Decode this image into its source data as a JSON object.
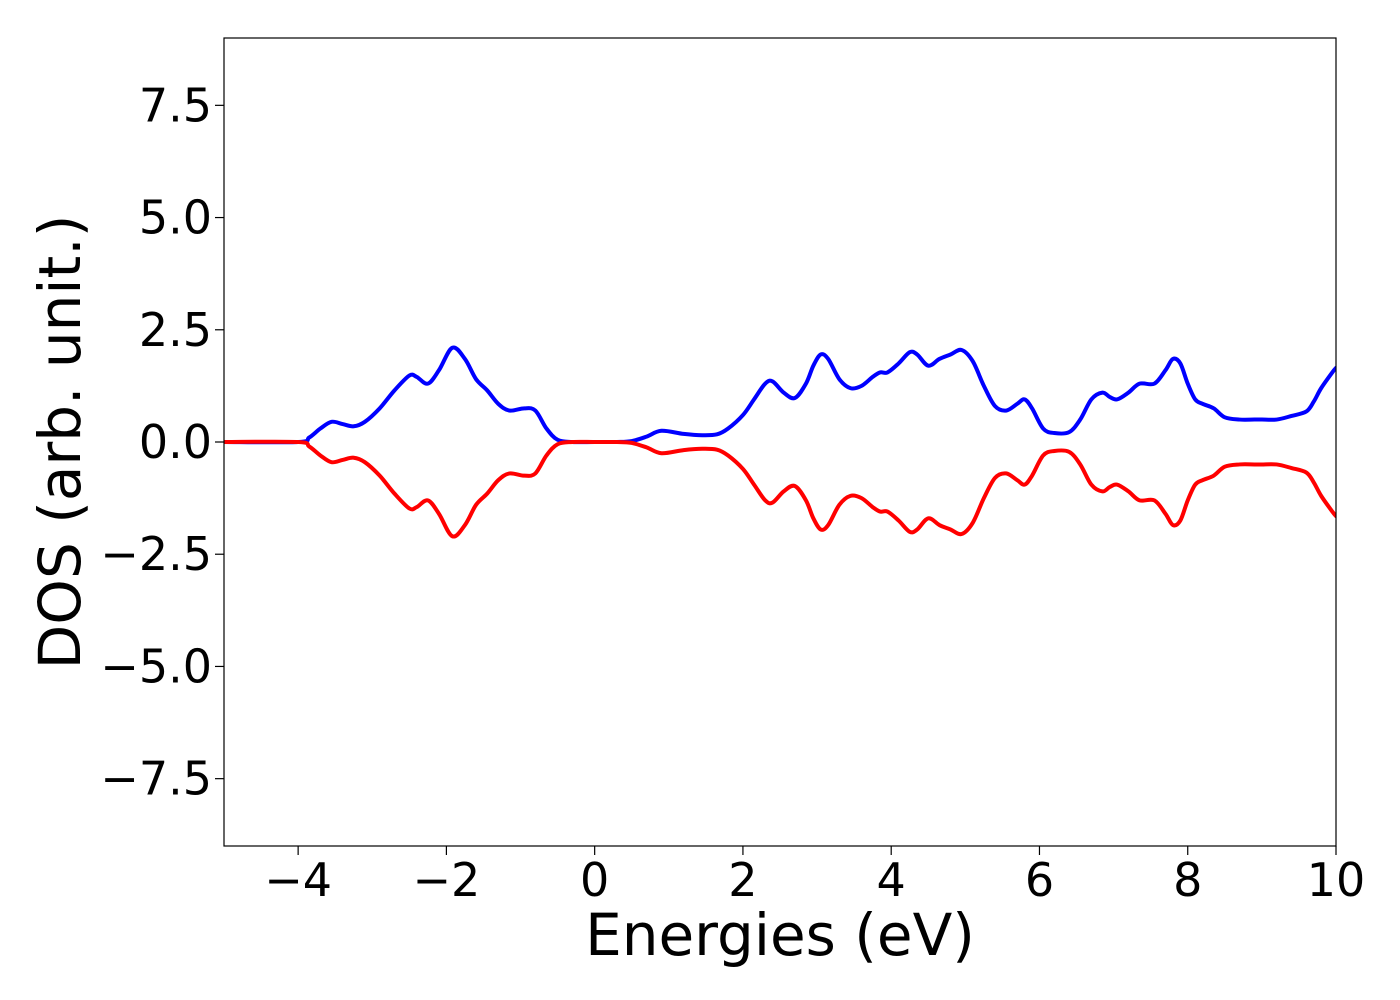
{
  "chart_data": {
    "type": "line",
    "title": "",
    "xlabel": "Energies (eV)",
    "ylabel": "DOS (arb. unit.)",
    "xlim": [
      -5,
      10
    ],
    "ylim": [
      -9,
      9
    ],
    "xticks": [
      -4,
      -2,
      0,
      2,
      4,
      6,
      8,
      10
    ],
    "xtick_labels": [
      "−4",
      "−2",
      "0",
      "2",
      "4",
      "6",
      "8",
      "10"
    ],
    "yticks": [
      -7.5,
      -5.0,
      -2.5,
      0.0,
      2.5,
      5.0,
      7.5
    ],
    "ytick_labels": [
      "−7.5",
      "−5.0",
      "−2.5",
      "0.0",
      "2.5",
      "5.0",
      "7.5"
    ],
    "grid": false,
    "legend": false,
    "x": [
      -5.0,
      -4.0,
      -3.85,
      -3.7,
      -3.55,
      -3.4,
      -3.25,
      -3.1,
      -2.9,
      -2.7,
      -2.5,
      -2.4,
      -2.25,
      -2.1,
      -1.92,
      -1.75,
      -1.6,
      -1.45,
      -1.3,
      -1.15,
      -0.95,
      -0.8,
      -0.65,
      -0.5,
      -0.3,
      0.0,
      0.3,
      0.5,
      0.7,
      0.9,
      1.2,
      1.45,
      1.65,
      1.8,
      2.0,
      2.15,
      2.3,
      2.4,
      2.55,
      2.7,
      2.85,
      2.95,
      3.05,
      3.15,
      3.3,
      3.45,
      3.6,
      3.75,
      3.85,
      3.95,
      4.1,
      4.25,
      4.35,
      4.5,
      4.65,
      4.8,
      4.95,
      5.1,
      5.25,
      5.4,
      5.55,
      5.7,
      5.8,
      5.9,
      6.05,
      6.2,
      6.4,
      6.55,
      6.7,
      6.85,
      6.95,
      7.05,
      7.2,
      7.35,
      7.55,
      7.7,
      7.8,
      7.9,
      8.0,
      8.1,
      8.2,
      8.35,
      8.5,
      8.7,
      8.9,
      9.0,
      9.2,
      9.4,
      9.6,
      9.7,
      9.8,
      9.95,
      10.0
    ],
    "series": [
      {
        "color": "#0000ff",
        "values": [
          0.0,
          0.0,
          0.1,
          0.3,
          0.45,
          0.4,
          0.35,
          0.45,
          0.75,
          1.15,
          1.48,
          1.45,
          1.3,
          1.6,
          2.1,
          1.85,
          1.4,
          1.15,
          0.85,
          0.7,
          0.75,
          0.7,
          0.3,
          0.05,
          0.0,
          0.0,
          0.0,
          0.02,
          0.12,
          0.25,
          0.18,
          0.15,
          0.17,
          0.3,
          0.6,
          0.95,
          1.3,
          1.35,
          1.1,
          0.98,
          1.3,
          1.7,
          1.95,
          1.85,
          1.4,
          1.2,
          1.25,
          1.45,
          1.55,
          1.55,
          1.75,
          2.0,
          1.95,
          1.7,
          1.85,
          1.95,
          2.05,
          1.8,
          1.25,
          0.8,
          0.7,
          0.85,
          0.95,
          0.75,
          0.3,
          0.2,
          0.22,
          0.5,
          0.95,
          1.1,
          1.0,
          0.95,
          1.1,
          1.3,
          1.3,
          1.6,
          1.85,
          1.75,
          1.3,
          0.95,
          0.85,
          0.75,
          0.55,
          0.5,
          0.5,
          0.5,
          0.5,
          0.58,
          0.68,
          0.9,
          1.2,
          1.55,
          1.65
        ]
      },
      {
        "color": "#ff0000",
        "values": [
          0.0,
          0.0,
          -0.1,
          -0.3,
          -0.45,
          -0.4,
          -0.35,
          -0.45,
          -0.75,
          -1.15,
          -1.48,
          -1.45,
          -1.3,
          -1.6,
          -2.1,
          -1.85,
          -1.4,
          -1.15,
          -0.85,
          -0.7,
          -0.75,
          -0.7,
          -0.3,
          -0.05,
          0.0,
          0.0,
          0.0,
          -0.02,
          -0.12,
          -0.25,
          -0.18,
          -0.15,
          -0.17,
          -0.3,
          -0.6,
          -0.95,
          -1.3,
          -1.35,
          -1.1,
          -0.98,
          -1.3,
          -1.7,
          -1.95,
          -1.85,
          -1.4,
          -1.2,
          -1.25,
          -1.45,
          -1.55,
          -1.55,
          -1.75,
          -2.0,
          -1.95,
          -1.7,
          -1.85,
          -1.95,
          -2.05,
          -1.8,
          -1.25,
          -0.8,
          -0.7,
          -0.85,
          -0.95,
          -0.75,
          -0.3,
          -0.2,
          -0.22,
          -0.5,
          -0.95,
          -1.1,
          -1.0,
          -0.95,
          -1.1,
          -1.3,
          -1.3,
          -1.6,
          -1.85,
          -1.75,
          -1.3,
          -0.95,
          -0.85,
          -0.75,
          -0.55,
          -0.5,
          -0.5,
          -0.5,
          -0.5,
          -0.58,
          -0.68,
          -0.9,
          -1.2,
          -1.55,
          -1.65
        ]
      }
    ]
  }
}
